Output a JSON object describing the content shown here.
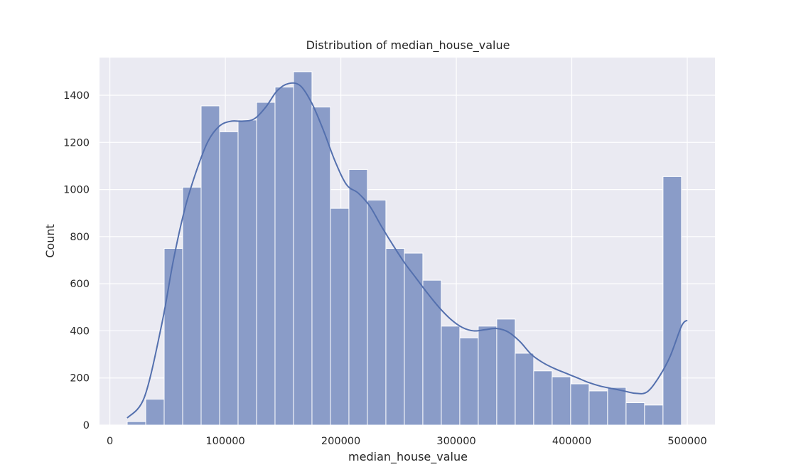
{
  "chart_data": {
    "type": "histogram",
    "title": "Distribution of median_house_value",
    "xlabel": "median_house_value",
    "ylabel": "Count",
    "xlim": [
      -9000,
      524000
    ],
    "ylim": [
      0,
      1560
    ],
    "xticks": [
      0,
      100000,
      200000,
      300000,
      400000,
      500000
    ],
    "xtick_labels": [
      "0",
      "100000",
      "200000",
      "300000",
      "400000",
      "500000"
    ],
    "yticks": [
      0,
      200,
      400,
      600,
      800,
      1000,
      1200,
      1400
    ],
    "ytick_labels": [
      "0",
      "200",
      "400",
      "600",
      "800",
      "1000",
      "1200",
      "1400"
    ],
    "grid": true,
    "bar_color": "#8a9cc8",
    "line_color": "#5470ae",
    "plot_background": "#eaeaf2",
    "bins": {
      "start": 15000,
      "width": 16000,
      "counts": [
        15,
        110,
        750,
        1010,
        1355,
        1245,
        1295,
        1370,
        1435,
        1500,
        1350,
        920,
        1085,
        955,
        750,
        730,
        615,
        420,
        370,
        420,
        450,
        305,
        230,
        205,
        175,
        145,
        160,
        95,
        85,
        1055
      ]
    },
    "kde": {
      "x": [
        15000,
        30000,
        45000,
        55000,
        65000,
        75000,
        85000,
        95000,
        105000,
        115000,
        125000,
        135000,
        145000,
        155000,
        165000,
        175000,
        185000,
        195000,
        205000,
        215000,
        225000,
        235000,
        245000,
        255000,
        265000,
        275000,
        285000,
        295000,
        305000,
        315000,
        325000,
        335000,
        345000,
        355000,
        365000,
        375000,
        385000,
        395000,
        405000,
        415000,
        425000,
        435000,
        445000,
        455000,
        465000,
        475000,
        485000,
        495000,
        500000
      ],
      "y": [
        30,
        120,
        430,
        700,
        920,
        1080,
        1205,
        1270,
        1290,
        1290,
        1300,
        1350,
        1420,
        1450,
        1440,
        1365,
        1250,
        1120,
        1020,
        985,
        930,
        845,
        765,
        690,
        625,
        560,
        500,
        450,
        415,
        400,
        405,
        410,
        395,
        355,
        300,
        265,
        240,
        220,
        200,
        180,
        165,
        155,
        145,
        135,
        140,
        200,
        290,
        420,
        445
      ]
    }
  }
}
